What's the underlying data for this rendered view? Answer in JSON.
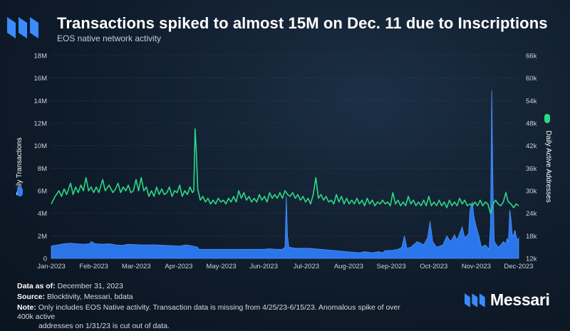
{
  "header": {
    "logo_icon": "messari-logo-icon",
    "title": "Transactions spiked to almost 15M on Dec. 11 due to Inscriptions",
    "subtitle": "EOS native network activity"
  },
  "chart_data": {
    "type": "area",
    "title": "Transactions spiked to almost 15M on Dec. 11 due to Inscriptions",
    "subtitle": "EOS native network activity",
    "x_labels": [
      "Jan-2023",
      "Feb-2023",
      "Mar-2023",
      "Apr-2023",
      "May-2023",
      "Jun-2023",
      "Jul-2023",
      "Aug-2023",
      "Sep-2023",
      "Oct-2023",
      "Nov-2023",
      "Dec-2023"
    ],
    "left_axis": {
      "label": "Daily Transactions",
      "ticks": [
        "0",
        "2M",
        "4M",
        "6M",
        "8M",
        "10M",
        "12M",
        "14M",
        "16M",
        "18M"
      ],
      "ylim": [
        0,
        18000000
      ]
    },
    "right_axis": {
      "label": "Daily Active Addresses",
      "ticks": [
        "12k",
        "18k",
        "24k",
        "30k",
        "36k",
        "42k",
        "48k",
        "54k",
        "60k",
        "66k"
      ],
      "ylim": [
        12000,
        66000
      ]
    },
    "series": [
      {
        "name": "Daily Transactions",
        "type": "area",
        "axis": "left",
        "color": "#2f7fff",
        "points": [
          [
            0,
            1100000
          ],
          [
            5,
            1200000
          ],
          [
            10,
            1300000
          ],
          [
            15,
            1350000
          ],
          [
            20,
            1300000
          ],
          [
            25,
            1250000
          ],
          [
            30,
            1300000
          ],
          [
            31,
            1500000
          ],
          [
            34,
            1300000
          ],
          [
            40,
            1250000
          ],
          [
            45,
            1300000
          ],
          [
            50,
            1200000
          ],
          [
            55,
            1150000
          ],
          [
            60,
            1250000
          ],
          [
            70,
            1200000
          ],
          [
            80,
            1200000
          ],
          [
            90,
            1150000
          ],
          [
            100,
            1100000
          ],
          [
            105,
            1200000
          ],
          [
            110,
            1100000
          ],
          [
            114,
            1000000
          ],
          [
            115,
            800000
          ],
          [
            125,
            800000
          ],
          [
            140,
            800000
          ],
          [
            150,
            800000
          ],
          [
            165,
            800000
          ],
          [
            170,
            850000
          ],
          [
            175,
            800000
          ],
          [
            180,
            800000
          ],
          [
            182,
            1000000
          ],
          [
            183,
            5500000
          ],
          [
            184,
            2000000
          ],
          [
            185,
            1000000
          ],
          [
            190,
            900000
          ],
          [
            200,
            900000
          ],
          [
            210,
            800000
          ],
          [
            220,
            700000
          ],
          [
            230,
            600000
          ],
          [
            240,
            500000
          ],
          [
            244,
            600000
          ],
          [
            250,
            500000
          ],
          [
            255,
            600000
          ],
          [
            258,
            500000
          ],
          [
            260,
            700000
          ],
          [
            265,
            700000
          ],
          [
            270,
            800000
          ],
          [
            273,
            1000000
          ],
          [
            275,
            2000000
          ],
          [
            277,
            900000
          ],
          [
            280,
            1000000
          ],
          [
            285,
            1500000
          ],
          [
            290,
            1200000
          ],
          [
            293,
            1800000
          ],
          [
            295,
            3300000
          ],
          [
            297,
            1500000
          ],
          [
            300,
            1000000
          ],
          [
            305,
            1200000
          ],
          [
            308,
            2000000
          ],
          [
            311,
            1500000
          ],
          [
            314,
            2100000
          ],
          [
            316,
            1600000
          ],
          [
            318,
            2200000
          ],
          [
            320,
            2800000
          ],
          [
            322,
            1800000
          ],
          [
            325,
            2200000
          ],
          [
            326,
            4200000
          ],
          [
            327,
            4800000
          ],
          [
            328,
            5000000
          ],
          [
            329,
            3800000
          ],
          [
            331,
            2800000
          ],
          [
            333,
            2000000
          ],
          [
            335,
            1000000
          ],
          [
            338,
            1200000
          ],
          [
            341,
            800000
          ],
          [
            342,
            3000000
          ],
          [
            343,
            14900000
          ],
          [
            344,
            6000000
          ],
          [
            345,
            1500000
          ],
          [
            348,
            1000000
          ],
          [
            350,
            1200000
          ],
          [
            352,
            1500000
          ],
          [
            354,
            1300000
          ],
          [
            355,
            1800000
          ],
          [
            356,
            1400000
          ],
          [
            357,
            4300000
          ],
          [
            358,
            3500000
          ],
          [
            359,
            2000000
          ],
          [
            360,
            2100000
          ],
          [
            361,
            2500000
          ],
          [
            362,
            2000000
          ],
          [
            363,
            1600000
          ],
          [
            364,
            1800000
          ]
        ]
      },
      {
        "name": "Daily Active Addresses",
        "type": "line",
        "axis": "right",
        "color": "#2bd985",
        "points": [
          [
            0,
            26500
          ],
          [
            3,
            28500
          ],
          [
            6,
            30000
          ],
          [
            8,
            28500
          ],
          [
            10,
            30500
          ],
          [
            12,
            29000
          ],
          [
            15,
            32000
          ],
          [
            17,
            29000
          ],
          [
            19,
            31000
          ],
          [
            21,
            29500
          ],
          [
            23,
            31500
          ],
          [
            25,
            30000
          ],
          [
            27,
            33500
          ],
          [
            29,
            30000
          ],
          [
            31,
            31000
          ],
          [
            33,
            29500
          ],
          [
            35,
            31000
          ],
          [
            37,
            29500
          ],
          [
            40,
            33000
          ],
          [
            42,
            30000
          ],
          [
            45,
            31500
          ],
          [
            48,
            29500
          ],
          [
            50,
            30500
          ],
          [
            52,
            32000
          ],
          [
            54,
            29500
          ],
          [
            56,
            31000
          ],
          [
            58,
            30000
          ],
          [
            60,
            31500
          ],
          [
            62,
            29500
          ],
          [
            64,
            30000
          ],
          [
            66,
            33000
          ],
          [
            68,
            30000
          ],
          [
            70,
            33500
          ],
          [
            72,
            30000
          ],
          [
            74,
            31000
          ],
          [
            76,
            28500
          ],
          [
            78,
            30000
          ],
          [
            80,
            28500
          ],
          [
            82,
            31000
          ],
          [
            84,
            29000
          ],
          [
            86,
            30500
          ],
          [
            88,
            29000
          ],
          [
            90,
            29500
          ],
          [
            92,
            31000
          ],
          [
            94,
            28500
          ],
          [
            96,
            30000
          ],
          [
            98,
            29500
          ],
          [
            100,
            31500
          ],
          [
            102,
            28500
          ],
          [
            104,
            30000
          ],
          [
            106,
            29000
          ],
          [
            108,
            31000
          ],
          [
            110,
            29500
          ],
          [
            111,
            30000
          ],
          [
            112,
            46500
          ],
          [
            113,
            40000
          ],
          [
            114,
            30500
          ],
          [
            116,
            27500
          ],
          [
            118,
            28500
          ],
          [
            120,
            27000
          ],
          [
            122,
            28000
          ],
          [
            124,
            26500
          ],
          [
            126,
            27500
          ],
          [
            128,
            26500
          ],
          [
            130,
            28000
          ],
          [
            132,
            27000
          ],
          [
            134,
            27500
          ],
          [
            136,
            26500
          ],
          [
            138,
            28000
          ],
          [
            140,
            27000
          ],
          [
            142,
            28500
          ],
          [
            144,
            27000
          ],
          [
            146,
            30000
          ],
          [
            148,
            28000
          ],
          [
            150,
            29500
          ],
          [
            152,
            27500
          ],
          [
            154,
            28500
          ],
          [
            156,
            27000
          ],
          [
            158,
            28000
          ],
          [
            160,
            27000
          ],
          [
            162,
            29000
          ],
          [
            164,
            27500
          ],
          [
            166,
            28500
          ],
          [
            168,
            27000
          ],
          [
            170,
            29500
          ],
          [
            172,
            28000
          ],
          [
            174,
            29000
          ],
          [
            176,
            28000
          ],
          [
            178,
            29500
          ],
          [
            180,
            28000
          ],
          [
            182,
            30000
          ],
          [
            184,
            29000
          ],
          [
            186,
            28500
          ],
          [
            188,
            29500
          ],
          [
            190,
            28000
          ],
          [
            192,
            29000
          ],
          [
            194,
            27500
          ],
          [
            196,
            28500
          ],
          [
            198,
            27000
          ],
          [
            200,
            28000
          ],
          [
            202,
            26500
          ],
          [
            204,
            29000
          ],
          [
            206,
            33500
          ],
          [
            208,
            28000
          ],
          [
            210,
            29000
          ],
          [
            212,
            27500
          ],
          [
            214,
            28500
          ],
          [
            216,
            27000
          ],
          [
            218,
            27500
          ],
          [
            220,
            26500
          ],
          [
            222,
            29000
          ],
          [
            224,
            27000
          ],
          [
            226,
            28500
          ],
          [
            228,
            26500
          ],
          [
            230,
            28000
          ],
          [
            232,
            26500
          ],
          [
            234,
            27500
          ],
          [
            236,
            26500
          ],
          [
            238,
            28000
          ],
          [
            240,
            26500
          ],
          [
            242,
            27500
          ],
          [
            244,
            26000
          ],
          [
            246,
            28000
          ],
          [
            248,
            26500
          ],
          [
            250,
            27500
          ],
          [
            252,
            26000
          ],
          [
            254,
            27000
          ],
          [
            256,
            26500
          ],
          [
            258,
            27500
          ],
          [
            260,
            26500
          ],
          [
            262,
            27000
          ],
          [
            264,
            26000
          ],
          [
            266,
            29500
          ],
          [
            268,
            26500
          ],
          [
            270,
            27500
          ],
          [
            272,
            26000
          ],
          [
            274,
            27000
          ],
          [
            276,
            26000
          ],
          [
            278,
            28500
          ],
          [
            280,
            26500
          ],
          [
            282,
            27500
          ],
          [
            284,
            26000
          ],
          [
            286,
            27000
          ],
          [
            288,
            26000
          ],
          [
            290,
            27500
          ],
          [
            292,
            26000
          ],
          [
            294,
            28500
          ],
          [
            296,
            26000
          ],
          [
            298,
            27000
          ],
          [
            300,
            26000
          ],
          [
            302,
            27500
          ],
          [
            304,
            26000
          ],
          [
            306,
            27000
          ],
          [
            308,
            25500
          ],
          [
            310,
            27500
          ],
          [
            312,
            26000
          ],
          [
            314,
            27000
          ],
          [
            316,
            26000
          ],
          [
            318,
            28000
          ],
          [
            320,
            26500
          ],
          [
            322,
            27500
          ],
          [
            324,
            26000
          ],
          [
            326,
            26500
          ],
          [
            328,
            26000
          ],
          [
            330,
            27000
          ],
          [
            332,
            26000
          ],
          [
            334,
            27500
          ],
          [
            336,
            26000
          ],
          [
            338,
            27000
          ],
          [
            340,
            26500
          ],
          [
            342,
            24000
          ],
          [
            343,
            25000
          ],
          [
            344,
            26500
          ],
          [
            346,
            27500
          ],
          [
            348,
            26500
          ],
          [
            350,
            26000
          ],
          [
            352,
            27000
          ],
          [
            354,
            29500
          ],
          [
            355,
            28000
          ],
          [
            356,
            27000
          ],
          [
            358,
            26500
          ],
          [
            360,
            25500
          ],
          [
            362,
            26500
          ],
          [
            364,
            26000
          ]
        ]
      }
    ]
  },
  "footer": {
    "data_as_of_label": "Data as of:",
    "data_as_of": "December 31, 2023",
    "source_label": "Source:",
    "source": "Blocktivity, Messari, bdata",
    "note_label": "Note:",
    "note_line1": "Only includes EOS Native activity. Transaction data is missing from 4/25/23-6/15/23. Anomalous spike of over 400k active",
    "note_line2": "addresses on 1/31/23 is cut out of data."
  },
  "brand": {
    "icon": "messari-logo-icon",
    "name": "Messari"
  },
  "colors": {
    "transactions": "#2f7fff",
    "addresses": "#2bd985",
    "background": "#0f1c2b"
  }
}
